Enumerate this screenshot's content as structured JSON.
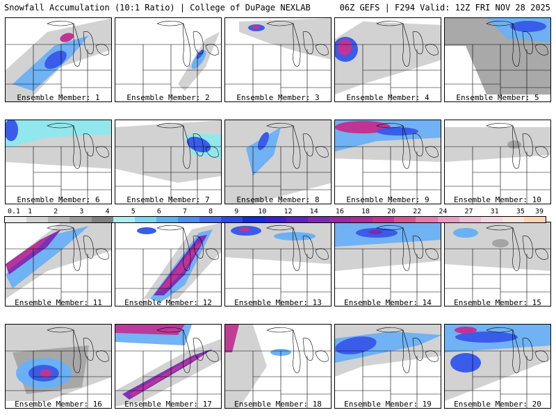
{
  "header": {
    "left": "Snowfall Accumulation (10:1 Ratio) | College of DuPage NEXLAB",
    "right": "06Z GEFS | F294 Valid: 12Z FRI NOV 28 2025"
  },
  "members": [
    {
      "label": "Ensemble Member: 1"
    },
    {
      "label": "Ensemble Member: 2"
    },
    {
      "label": "Ensemble Member: 3"
    },
    {
      "label": "Ensemble Member: 4"
    },
    {
      "label": "Ensemble Member: 5"
    },
    {
      "label": "Ensemble Member: 6"
    },
    {
      "label": "Ensemble Member: 7"
    },
    {
      "label": "Ensemble Member: 8"
    },
    {
      "label": "Ensemble Member: 9"
    },
    {
      "label": "Ensemble Member: 10"
    },
    {
      "label": "Ensemble Member: 11"
    },
    {
      "label": "Ensemble Member: 12"
    },
    {
      "label": "Ensemble Member: 13"
    },
    {
      "label": "Ensemble Member: 14"
    },
    {
      "label": "Ensemble Member: 15"
    },
    {
      "label": "Ensemble Member: 16"
    },
    {
      "label": "Ensemble Member: 17"
    },
    {
      "label": "Ensemble Member: 18"
    },
    {
      "label": "Ensemble Member: 19"
    },
    {
      "label": "Ensemble Member: 20"
    }
  ],
  "colorbar": {
    "labels": [
      "0.1",
      "1",
      "2",
      "3",
      "4",
      "5",
      "6",
      "7",
      "8",
      "9",
      "10",
      "12",
      "14",
      "16",
      "18",
      "20",
      "22",
      "24",
      "27",
      "31",
      "35",
      "39"
    ],
    "colors": [
      "#ececec",
      "#d2d2d2",
      "#b6b6b6",
      "#9a9a9a",
      "#808080",
      "#a8f0f0",
      "#78d6ee",
      "#58b2f2",
      "#4a8ef0",
      "#3c6cee",
      "#2a48e6",
      "#1428dc",
      "#3a1ed0",
      "#5a22c2",
      "#7a2ab4",
      "#962aa8",
      "#ae2a9e",
      "#c43296",
      "#d8509a",
      "#e27cb2",
      "#ea9cc6",
      "#f0bcd6",
      "#f6d6e2",
      "#fae6dc",
      "#fcd4b8"
    ]
  },
  "colors": {
    "light_gray": "#d0d0d0",
    "mid_gray": "#a4a4a4",
    "dark_gray": "#787878",
    "cyan": "#8ee8ee",
    "light_blue": "#6ab0f4",
    "blue": "#3a5cea",
    "dark_blue": "#1e2ad8",
    "purple": "#7a2ab4",
    "magenta": "#c03494"
  }
}
